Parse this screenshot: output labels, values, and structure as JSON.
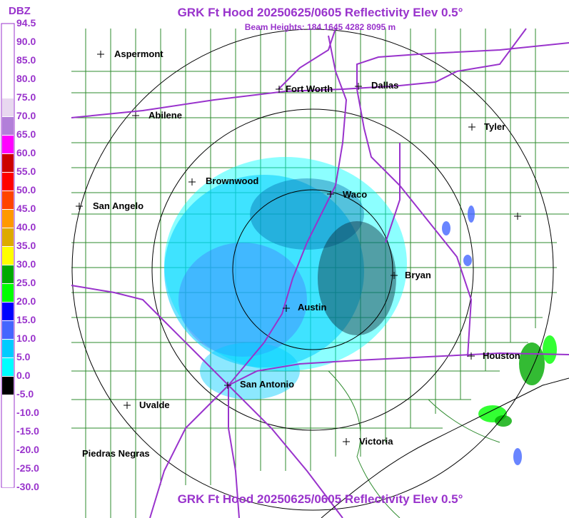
{
  "header": {
    "title": "GRK Ft Hood 20250625/0605 Reflectivity Elev 0.5°",
    "beam_heights": "Beam Heights: 184 1645 4282 8095 m"
  },
  "footer": {
    "title": "GRK Ft Hood 20250625/0605 Reflectivity Elev 0.5°"
  },
  "legend": {
    "unit": "DBZ",
    "levels": [
      "94.5",
      "90.0",
      "85.0",
      "80.0",
      "75.0",
      "70.0",
      "65.0",
      "60.0",
      "55.0",
      "50.0",
      "45.0",
      "40.0",
      "35.0",
      "30.0",
      "25.0",
      "20.0",
      "15.0",
      "10.0",
      "5.0",
      "0.0",
      "-5.0",
      "-10.0",
      "-15.0",
      "-20.0",
      "-25.0",
      "-30.0"
    ],
    "colors": [
      "#ffffff",
      "#ffffff",
      "#ffffff",
      "#ffffff",
      "#e8d8f0",
      "#b27fd9",
      "#ff00ff",
      "#cc0000",
      "#ff0000",
      "#ff4400",
      "#ff9900",
      "#ddaa00",
      "#ffff00",
      "#00aa00",
      "#00ff00",
      "#0000ff",
      "#4466ff",
      "#00ccff",
      "#00ffff",
      "#000000",
      "#ffffff",
      "#ffffff",
      "#ffffff",
      "#ffffff",
      "#ffffff"
    ]
  },
  "cities": [
    {
      "name": "Aspermont",
      "label": "Aspermont"
    },
    {
      "name": "Fort Worth",
      "label": "Fort Worth"
    },
    {
      "name": "Dallas",
      "label": "Dallas"
    },
    {
      "name": "Abilene",
      "label": "Abilene"
    },
    {
      "name": "Tyler",
      "label": "Tyler"
    },
    {
      "name": "Brownwood",
      "label": "Brownwood"
    },
    {
      "name": "Waco",
      "label": "Waco"
    },
    {
      "name": "San Angelo",
      "label": "San Angelo"
    },
    {
      "name": "Bryan",
      "label": "Bryan"
    },
    {
      "name": "Austin",
      "label": "Austin"
    },
    {
      "name": "Houston",
      "label": "Houston"
    },
    {
      "name": "San Antonio",
      "label": "San Antonio"
    },
    {
      "name": "Uvalde",
      "label": "Uvalde"
    },
    {
      "name": "Victoria",
      "label": "Victoria"
    },
    {
      "name": "Piedras Negras",
      "label": "Piedras Negras"
    }
  ],
  "colors": {
    "title": "#9933cc",
    "county_lines": "#2e8b2e",
    "highways": "#9933cc",
    "range_rings": "#000000"
  }
}
